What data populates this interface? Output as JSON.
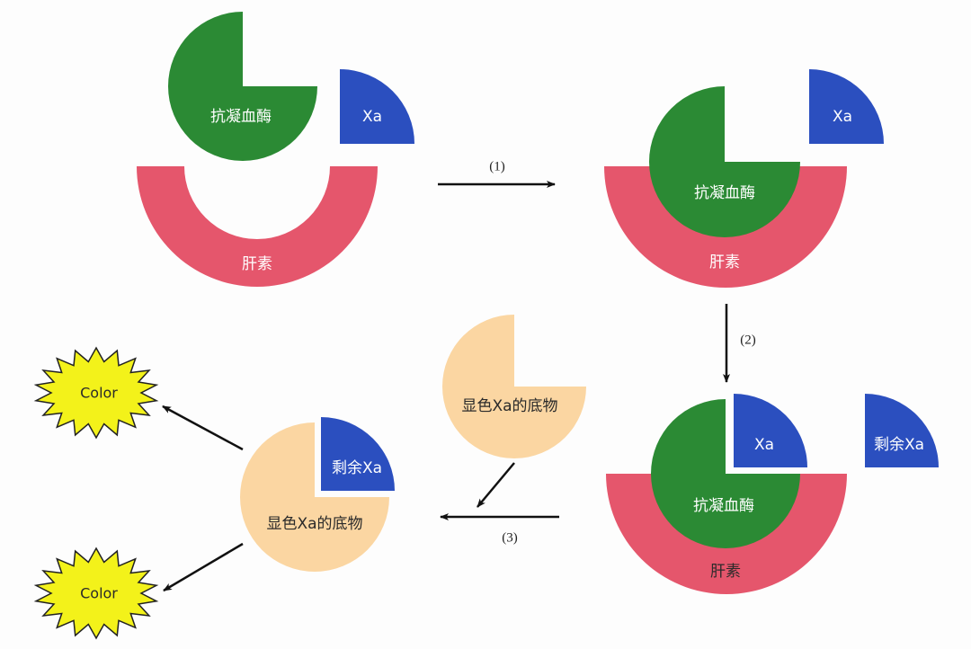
{
  "colors": {
    "antithrombin": "#2b8a34",
    "xa": "#2b4fbf",
    "heparin": "#e5566c",
    "substrate": "#fbd6a2",
    "color_burst": "#f3f21a"
  },
  "labels": {
    "antithrombin": "抗凝血酶",
    "xa": "Xa",
    "heparin": "肝素",
    "residual_xa": "剩余Xa",
    "substrate": "显色Xa的底物",
    "color": "Color"
  },
  "steps": [
    "(1)",
    "(2)",
    "(3)"
  ]
}
